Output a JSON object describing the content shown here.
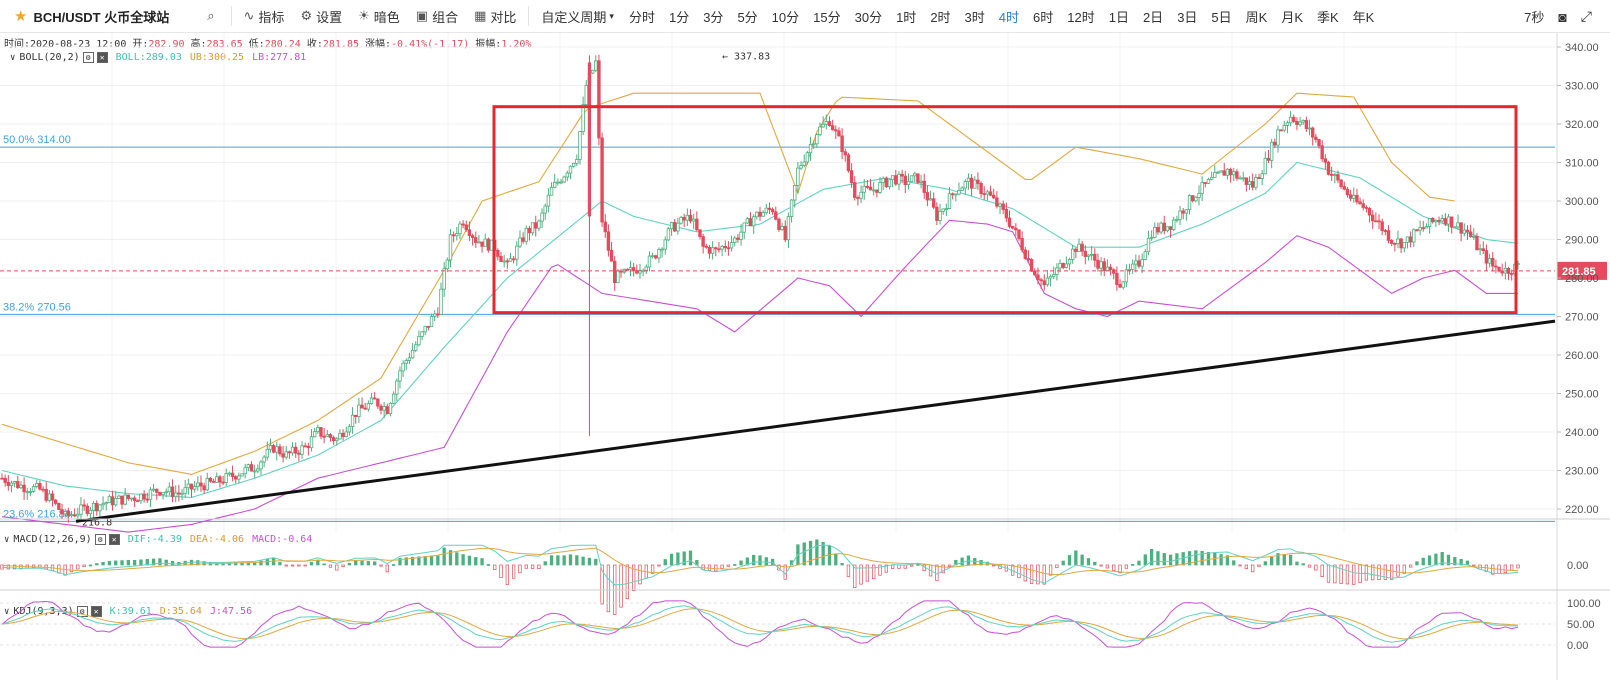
{
  "toolbar": {
    "symbol": "BCH/USDT 火币全球站",
    "indicator_label": "指标",
    "settings_label": "设置",
    "theme_label": "暗色",
    "combo_label": "组合",
    "compare_label": "对比",
    "custom_period_label": "自定义周期",
    "periods": [
      "分时",
      "1分",
      "3分",
      "5分",
      "10分",
      "15分",
      "30分",
      "1时",
      "2时",
      "3时",
      "4时",
      "6时",
      "12时",
      "1日",
      "2日",
      "3日",
      "5日",
      "周K",
      "月K",
      "季K",
      "年K"
    ],
    "active_period": "4时",
    "refresh": "7秒"
  },
  "info": {
    "time": "时间:2020-08-23 12:00",
    "open_label": "开:",
    "open": "282.90",
    "high_label": "高:",
    "high": "283.65",
    "low_label": "低:",
    "low": "280.24",
    "close_label": "收:",
    "close": "281.85",
    "change_label": "涨幅:",
    "change": "-0.41%(-1.17)",
    "amp_label": "振幅:",
    "amp": "1.20%"
  },
  "boll": {
    "name": "BOLL(20,2)",
    "boll": "BOLL:289.03",
    "ub": "UB:300.25",
    "lb": "LB:277.81"
  },
  "macd": {
    "name": "MACD(12,26,9)",
    "dif": "DIF:-4.39",
    "dea": "DEA:-4.06",
    "macd": "MACD:-0.64"
  },
  "kdj": {
    "name": "KDJ(9,3,3)",
    "k": "K:39.61",
    "d": "D:35.64",
    "j": "J:47.56"
  },
  "colors": {
    "up": "#4bb07d",
    "down": "#e44b5c",
    "mid": "#5fd3c0",
    "ub": "#e0a93f",
    "lb": "#c84fd4",
    "fib": "#3fa1e6",
    "accent": "#2d7fd3",
    "box": "#e8262b"
  },
  "chart_data": {
    "type": "candlestick",
    "price_axis": {
      "min": 210,
      "max": 345,
      "ticks": [
        "340.00",
        "330.00",
        "320.00",
        "310.00",
        "300.00",
        "290.00",
        "280.00",
        "270.00",
        "260.00",
        "250.00",
        "240.00",
        "230.00",
        "220.00"
      ]
    },
    "macd_axis": {
      "ticks": [
        "0.00"
      ]
    },
    "kdj_axis": {
      "ticks": [
        "100.00",
        "50.00",
        "0.00"
      ]
    },
    "current_price": "281.85",
    "fib_levels": [
      {
        "label": "50.0% 314.00",
        "value": 314.0
      },
      {
        "label": "38.2% 270.56",
        "value": 270.56
      },
      {
        "label": "23.6% 216.80",
        "value": 216.8
      }
    ],
    "high_marker": {
      "label": "← 337.83",
      "value": 337.83
    },
    "low_marker": {
      "label": "216.8",
      "value": 216.8
    },
    "range_box": {
      "top": 324.5,
      "bottom": 271.0
    },
    "trendline": {
      "start": 216.8,
      "end": 268.8
    },
    "price_path": [
      [
        0,
        228
      ],
      [
        6,
        226
      ],
      [
        12,
        225
      ],
      [
        16,
        222
      ],
      [
        20,
        218
      ],
      [
        26,
        220
      ],
      [
        34,
        222
      ],
      [
        42,
        223
      ],
      [
        50,
        225
      ],
      [
        56,
        224
      ],
      [
        62,
        226
      ],
      [
        68,
        227
      ],
      [
        74,
        229
      ],
      [
        80,
        231
      ],
      [
        86,
        236
      ],
      [
        90,
        234
      ],
      [
        96,
        236
      ],
      [
        100,
        240
      ],
      [
        106,
        238
      ],
      [
        112,
        245
      ],
      [
        118,
        248
      ],
      [
        122,
        246
      ],
      [
        126,
        256
      ],
      [
        132,
        264
      ],
      [
        138,
        272
      ],
      [
        142,
        290
      ],
      [
        146,
        295
      ],
      [
        150,
        290
      ],
      [
        156,
        288
      ],
      [
        160,
        283
      ],
      [
        166,
        292
      ],
      [
        170,
        294
      ],
      [
        174,
        303
      ],
      [
        178,
        307
      ],
      [
        182,
        312
      ],
      [
        185,
        330
      ],
      [
        188,
        336
      ],
      [
        190,
        295
      ],
      [
        194,
        280
      ],
      [
        200,
        282
      ],
      [
        206,
        285
      ],
      [
        212,
        293
      ],
      [
        218,
        296
      ],
      [
        222,
        288
      ],
      [
        226,
        287
      ],
      [
        232,
        290
      ],
      [
        238,
        296
      ],
      [
        244,
        298
      ],
      [
        248,
        290
      ],
      [
        252,
        308
      ],
      [
        258,
        318
      ],
      [
        262,
        321
      ],
      [
        266,
        314
      ],
      [
        270,
        302
      ],
      [
        276,
        303
      ],
      [
        282,
        306
      ],
      [
        286,
        305
      ],
      [
        290,
        306
      ],
      [
        296,
        296
      ],
      [
        302,
        303
      ],
      [
        306,
        305
      ],
      [
        312,
        302
      ],
      [
        318,
        296
      ],
      [
        322,
        290
      ],
      [
        326,
        283
      ],
      [
        330,
        278
      ],
      [
        334,
        282
      ],
      [
        340,
        288
      ],
      [
        344,
        286
      ],
      [
        350,
        282
      ],
      [
        354,
        279
      ],
      [
        360,
        284
      ],
      [
        364,
        292
      ],
      [
        370,
        294
      ],
      [
        374,
        298
      ],
      [
        378,
        302
      ],
      [
        384,
        306
      ],
      [
        388,
        308
      ],
      [
        392,
        306
      ],
      [
        396,
        304
      ],
      [
        400,
        310
      ],
      [
        404,
        318
      ],
      [
        408,
        322
      ],
      [
        412,
        320
      ],
      [
        416,
        316
      ],
      [
        420,
        308
      ],
      [
        424,
        304
      ],
      [
        428,
        300
      ],
      [
        432,
        298
      ],
      [
        436,
        294
      ],
      [
        440,
        290
      ],
      [
        444,
        289
      ],
      [
        448,
        292
      ],
      [
        452,
        294
      ],
      [
        456,
        296
      ],
      [
        460,
        294
      ],
      [
        464,
        292
      ],
      [
        468,
        287
      ],
      [
        472,
        283
      ],
      [
        476,
        282
      ],
      [
        480,
        283
      ]
    ],
    "boll_mid_path": [
      [
        0,
        230
      ],
      [
        20,
        226
      ],
      [
        40,
        224
      ],
      [
        60,
        223
      ],
      [
        80,
        228
      ],
      [
        100,
        234
      ],
      [
        120,
        243
      ],
      [
        140,
        262
      ],
      [
        160,
        280
      ],
      [
        175,
        290
      ],
      [
        190,
        300
      ],
      [
        200,
        296
      ],
      [
        220,
        292
      ],
      [
        240,
        294
      ],
      [
        260,
        303
      ],
      [
        280,
        306
      ],
      [
        300,
        303
      ],
      [
        320,
        298
      ],
      [
        340,
        288
      ],
      [
        360,
        288
      ],
      [
        380,
        294
      ],
      [
        400,
        302
      ],
      [
        410,
        310
      ],
      [
        430,
        306
      ],
      [
        450,
        296
      ],
      [
        470,
        290
      ],
      [
        480,
        289
      ]
    ],
    "boll_ub_path": [
      [
        0,
        242
      ],
      [
        20,
        237
      ],
      [
        40,
        232
      ],
      [
        60,
        229
      ],
      [
        80,
        235
      ],
      [
        100,
        243
      ],
      [
        120,
        254
      ],
      [
        140,
        282
      ],
      [
        152,
        300
      ],
      [
        170,
        305
      ],
      [
        185,
        324
      ],
      [
        200,
        328
      ],
      [
        215,
        328
      ],
      [
        240,
        328
      ],
      [
        252,
        302
      ],
      [
        258,
        318
      ],
      [
        265,
        327
      ],
      [
        290,
        326
      ],
      [
        310,
        314
      ],
      [
        325,
        305
      ],
      [
        340,
        314
      ],
      [
        360,
        311
      ],
      [
        380,
        307
      ],
      [
        400,
        320
      ],
      [
        410,
        328
      ],
      [
        428,
        327
      ],
      [
        440,
        310
      ],
      [
        452,
        301
      ],
      [
        460,
        300
      ]
    ],
    "boll_lb_path": [
      [
        0,
        218
      ],
      [
        20,
        216
      ],
      [
        40,
        214
      ],
      [
        60,
        216
      ],
      [
        80,
        220
      ],
      [
        100,
        228
      ],
      [
        120,
        232
      ],
      [
        140,
        236
      ],
      [
        160,
        266
      ],
      [
        175,
        284
      ],
      [
        190,
        276
      ],
      [
        205,
        274
      ],
      [
        220,
        272
      ],
      [
        232,
        266
      ],
      [
        252,
        280
      ],
      [
        262,
        278
      ],
      [
        272,
        270
      ],
      [
        285,
        282
      ],
      [
        300,
        295
      ],
      [
        312,
        294
      ],
      [
        320,
        292
      ],
      [
        330,
        276
      ],
      [
        340,
        272
      ],
      [
        350,
        270
      ],
      [
        360,
        274
      ],
      [
        380,
        272
      ],
      [
        400,
        284
      ],
      [
        410,
        291
      ],
      [
        420,
        288
      ],
      [
        430,
        282
      ],
      [
        440,
        276
      ],
      [
        450,
        280
      ],
      [
        460,
        282
      ],
      [
        470,
        276
      ],
      [
        480,
        276
      ]
    ],
    "macd_range": [
      -0.55,
      0.55
    ],
    "kdj_range": [
      0,
      100
    ]
  }
}
